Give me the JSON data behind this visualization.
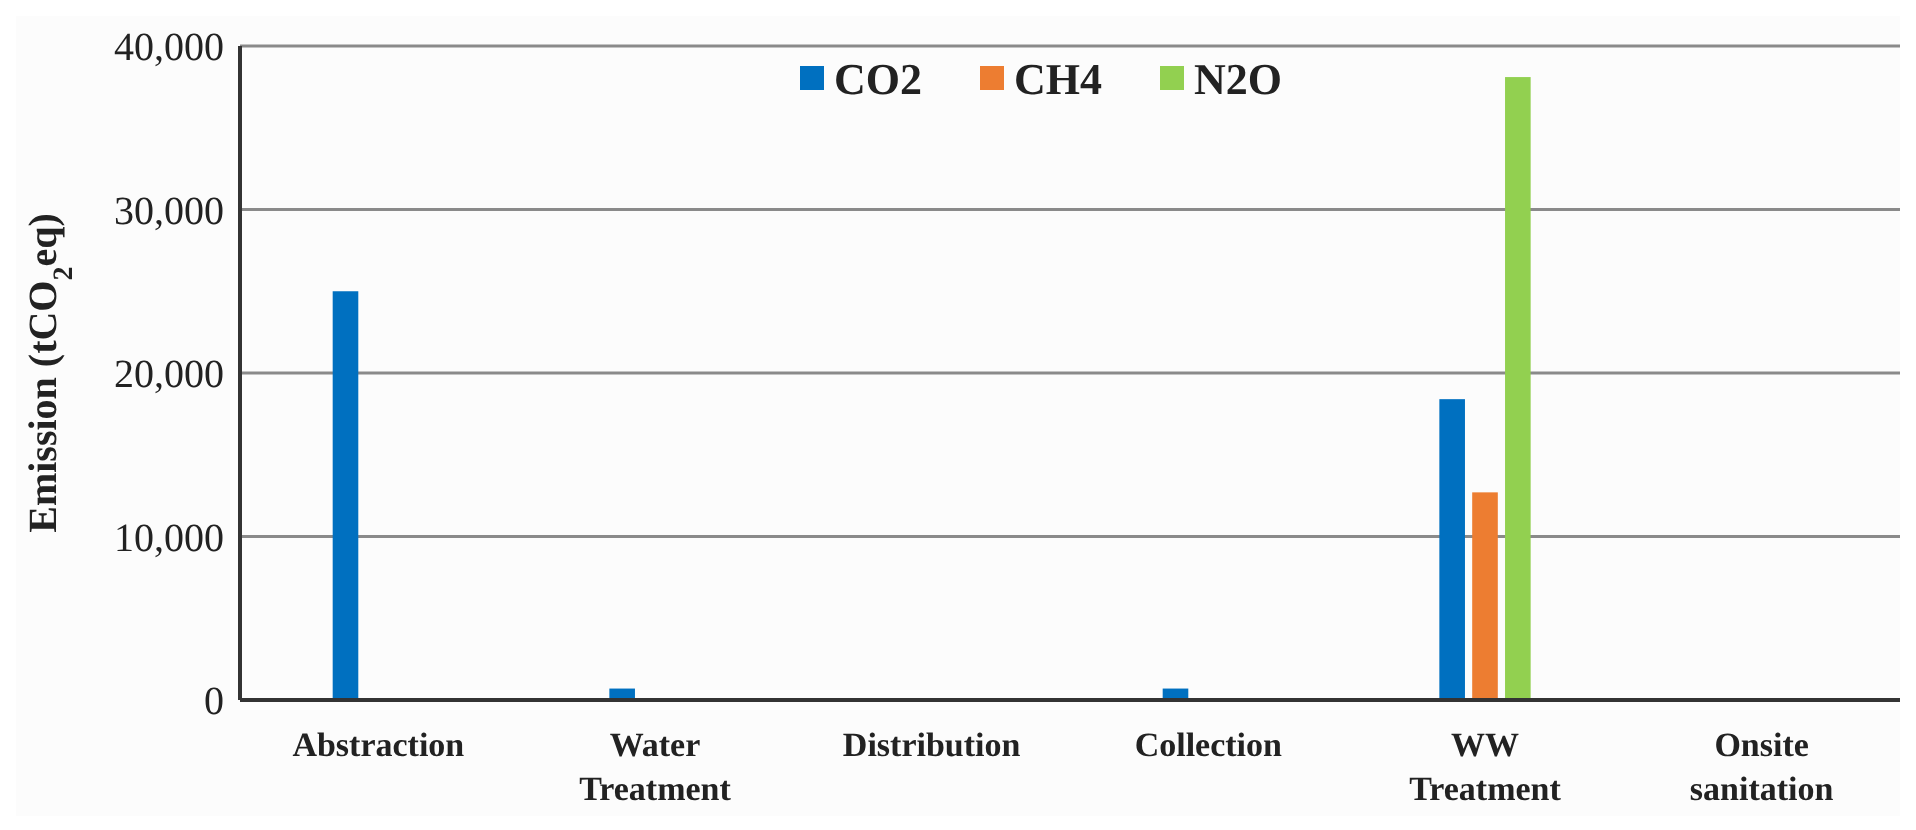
{
  "chart_data": {
    "type": "bar",
    "ylabel": "Emission (tCO$_{2}$eq)",
    "categories": [
      "Abstraction",
      "Water Treatment",
      "Distribution",
      "Collection",
      "WW Treatment",
      "Onsite sanitation"
    ],
    "series": [
      {
        "name": "CO2",
        "color": "#0070c0",
        "values": [
          25000,
          700,
          0,
          700,
          18400,
          0
        ]
      },
      {
        "name": "CH4",
        "color": "#ed7d31",
        "values": [
          0,
          0,
          0,
          0,
          12700,
          0
        ]
      },
      {
        "name": "N2O",
        "color": "#92d050",
        "values": [
          0,
          0,
          0,
          0,
          38100,
          0
        ]
      }
    ],
    "ylim": [
      0,
      40000
    ],
    "yticks": [
      {
        "value": 0,
        "label": "0"
      },
      {
        "value": 10000,
        "label": "10,000"
      },
      {
        "value": 20000,
        "label": "20,000"
      },
      {
        "value": 30000,
        "label": "30,000"
      },
      {
        "value": 40000,
        "label": "40,000"
      }
    ],
    "grid": "y",
    "legend": "top"
  }
}
